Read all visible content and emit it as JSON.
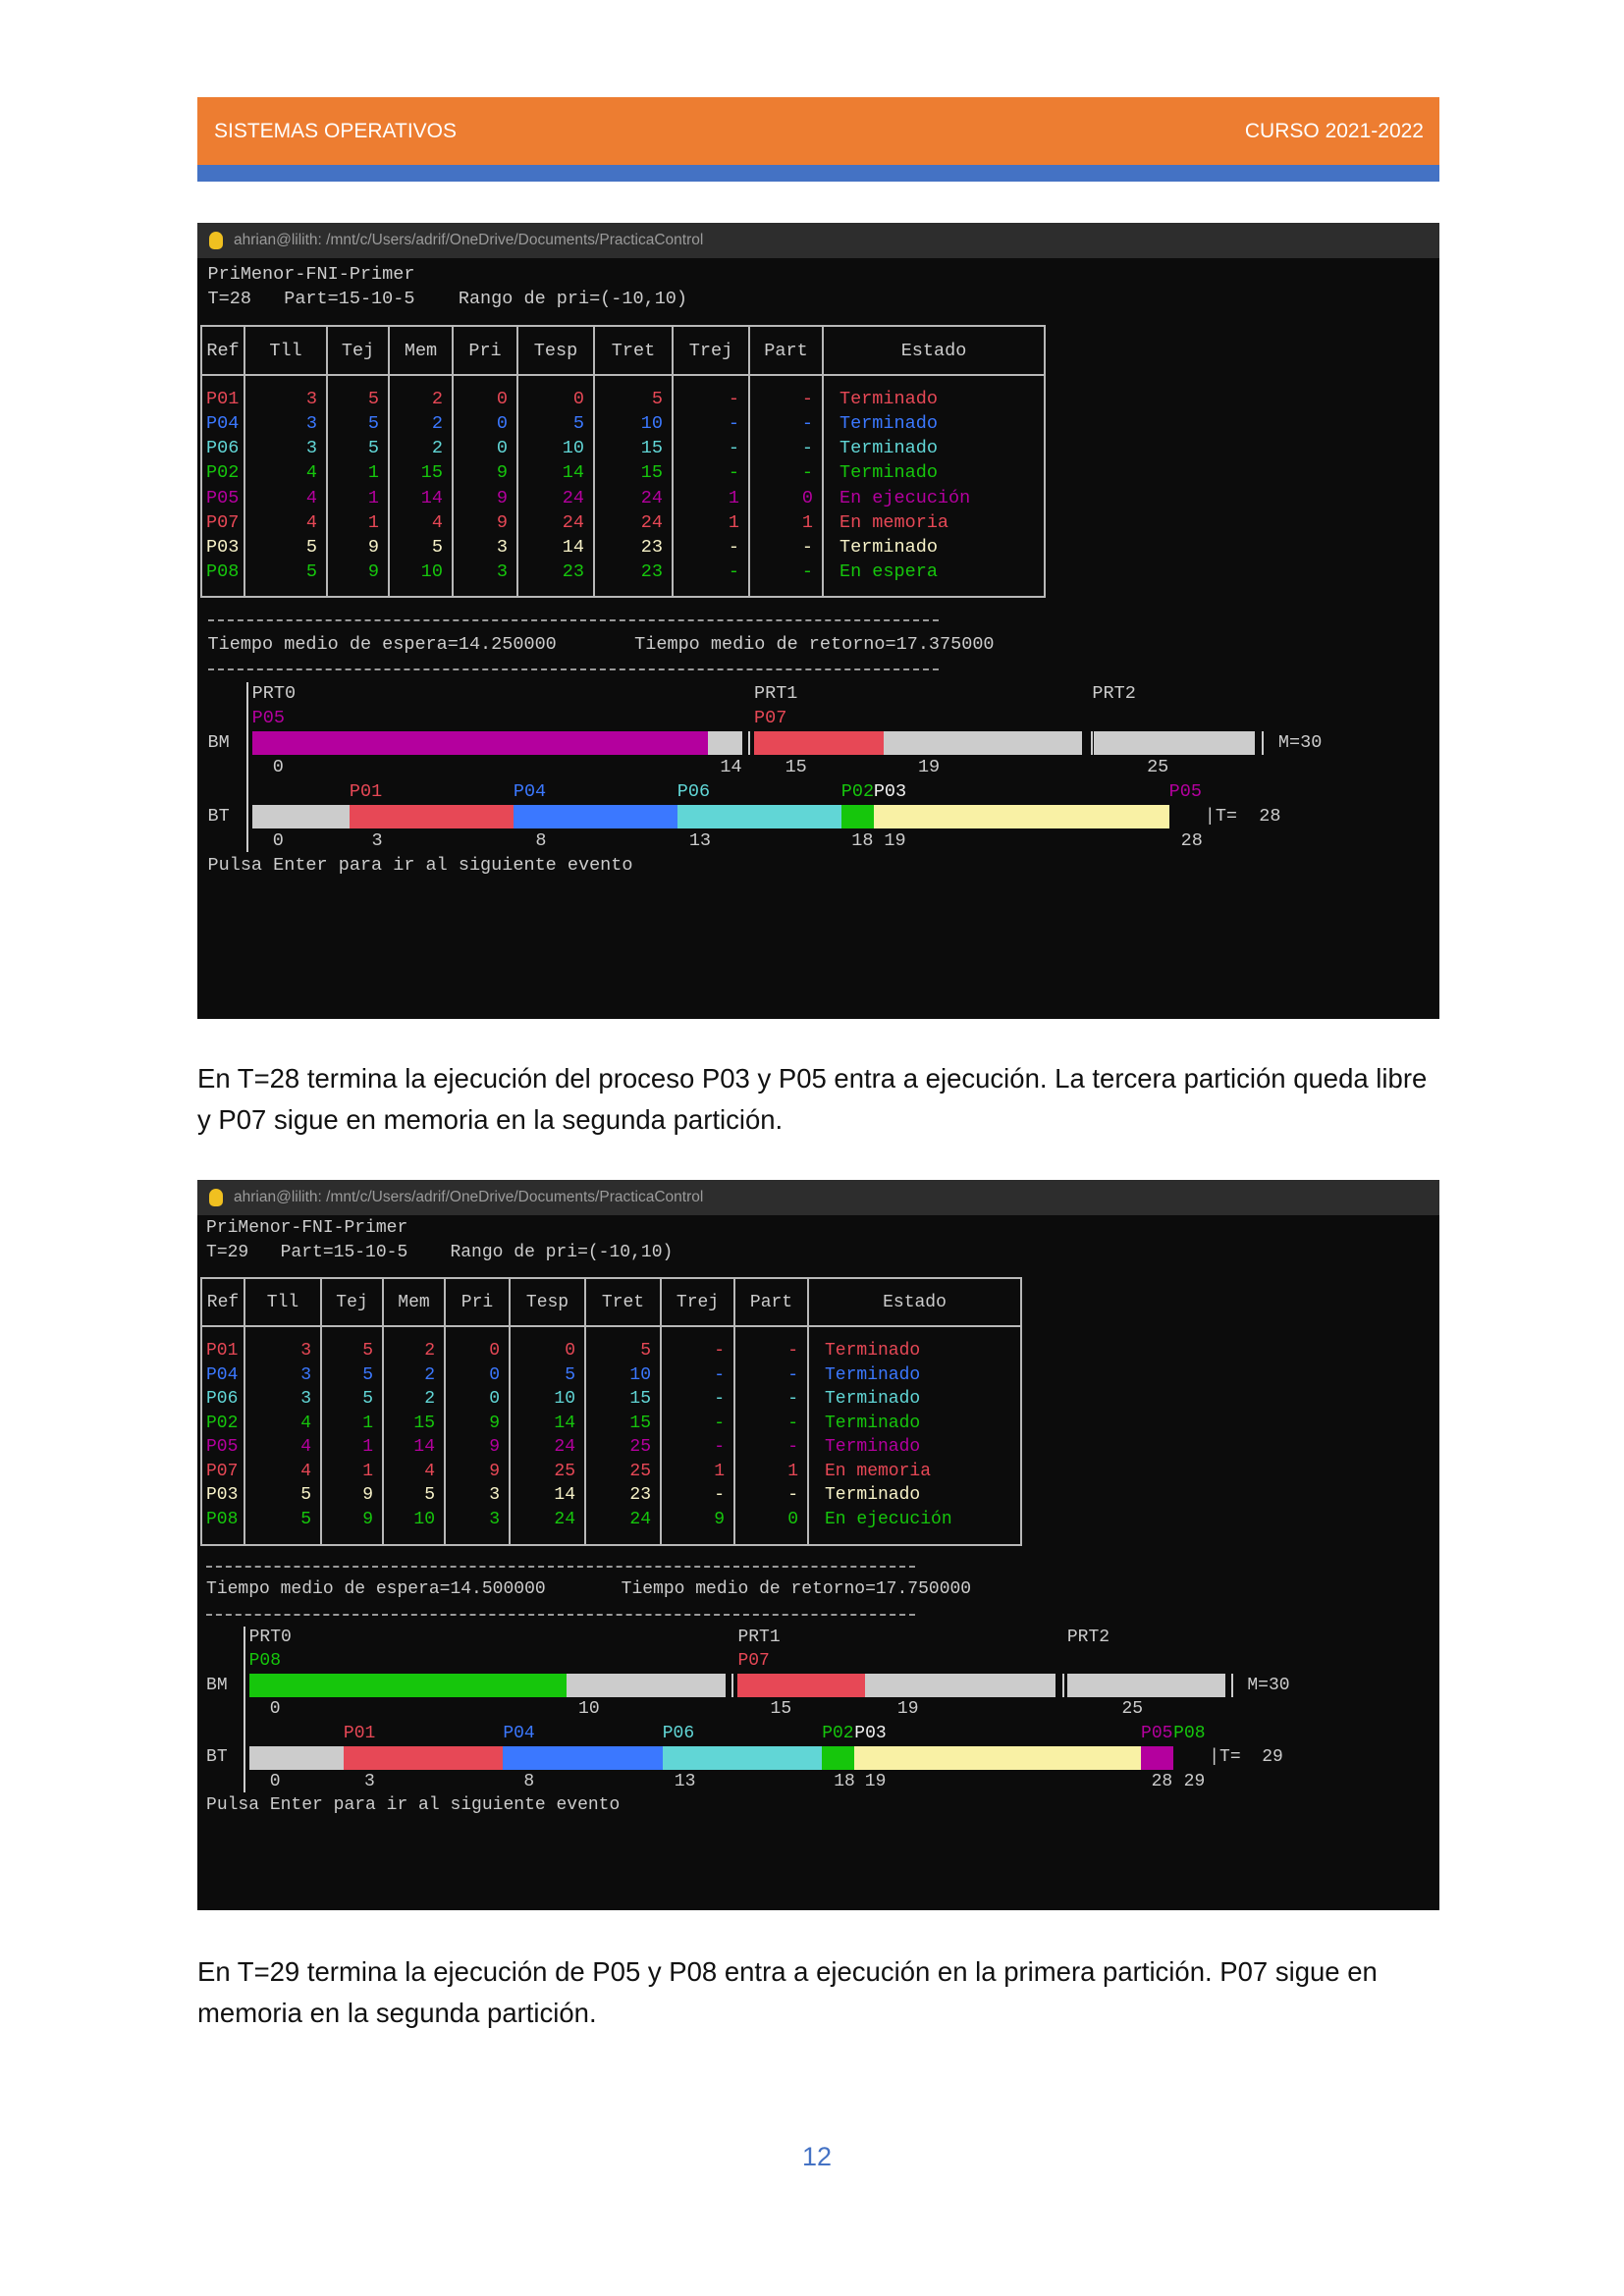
{
  "header": {
    "left": "SISTEMAS OPERATIVOS",
    "right": "CURSO 2021-2022"
  },
  "screens": [
    {
      "window_title": "ahrian@lilith: /mnt/c/Users/adrif/OneDrive/Documents/PracticaControl",
      "algorithm": "PriMenor-FNI-Primer",
      "status": "T=28   Part=15-10-5    Rango de pri=(-10,10)",
      "table": {
        "columns": [
          "Ref",
          "Tll",
          "Tej",
          "Mem",
          "Pri",
          "Tesp",
          "Tret",
          "Trej",
          "Part",
          "Estado"
        ],
        "rows": [
          [
            "P01",
            3,
            5,
            2,
            0,
            0,
            5,
            "-",
            "-",
            "Terminado"
          ],
          [
            "P04",
            3,
            5,
            2,
            0,
            5,
            10,
            "-",
            "-",
            "Terminado"
          ],
          [
            "P06",
            3,
            5,
            2,
            0,
            10,
            15,
            "-",
            "-",
            "Terminado"
          ],
          [
            "P02",
            4,
            1,
            15,
            9,
            14,
            15,
            "-",
            "-",
            "Terminado"
          ],
          [
            "P05",
            4,
            1,
            14,
            9,
            24,
            24,
            1,
            0,
            "En ejecución"
          ],
          [
            "P07",
            4,
            1,
            4,
            9,
            24,
            24,
            1,
            1,
            "En memoria"
          ],
          [
            "P03",
            5,
            9,
            5,
            3,
            14,
            23,
            "-",
            "-",
            "Terminado"
          ],
          [
            "P08",
            5,
            9,
            10,
            3,
            23,
            23,
            "-",
            "-",
            "En espera"
          ]
        ]
      },
      "avg_wait": "Tiempo medio de espera=14.250000",
      "avg_return": "Tiempo medio de retorno=17.375000",
      "memory": {
        "label": "BM",
        "partitions": [
          "PRT0",
          "PRT1",
          "PRT2"
        ],
        "processes": [
          "P05",
          "P07"
        ],
        "ticks": [
          0,
          14,
          15,
          19,
          25
        ],
        "end_label": "M=30"
      },
      "time": {
        "label": "BT",
        "processes": [
          "P01",
          "P04",
          "P06",
          "P02",
          "P03",
          "P05"
        ],
        "ticks": [
          0,
          3,
          8,
          13,
          18,
          19,
          28
        ],
        "end_label": "|T=  28"
      },
      "prompt": "Pulsa Enter para ir al siguiente evento",
      "caption": "En T=28 termina la ejecución del proceso P03 y P05 entra a ejecución. La tercera partición queda libre y P07 sigue en memoria en la segunda partición."
    },
    {
      "window_title": "ahrian@lilith: /mnt/c/Users/adrif/OneDrive/Documents/PracticaControl",
      "algorithm": "PriMenor-FNI-Primer",
      "status": "T=29   Part=15-10-5    Rango de pri=(-10,10)",
      "table": {
        "columns": [
          "Ref",
          "Tll",
          "Tej",
          "Mem",
          "Pri",
          "Tesp",
          "Tret",
          "Trej",
          "Part",
          "Estado"
        ],
        "rows": [
          [
            "P01",
            3,
            5,
            2,
            0,
            0,
            5,
            "-",
            "-",
            "Terminado"
          ],
          [
            "P04",
            3,
            5,
            2,
            0,
            5,
            10,
            "-",
            "-",
            "Terminado"
          ],
          [
            "P06",
            3,
            5,
            2,
            0,
            10,
            15,
            "-",
            "-",
            "Terminado"
          ],
          [
            "P02",
            4,
            1,
            15,
            9,
            14,
            15,
            "-",
            "-",
            "Terminado"
          ],
          [
            "P05",
            4,
            1,
            14,
            9,
            24,
            25,
            "-",
            "-",
            "Terminado"
          ],
          [
            "P07",
            4,
            1,
            4,
            9,
            25,
            25,
            1,
            1,
            "En memoria"
          ],
          [
            "P03",
            5,
            9,
            5,
            3,
            14,
            23,
            "-",
            "-",
            "Terminado"
          ],
          [
            "P08",
            5,
            9,
            10,
            3,
            24,
            24,
            9,
            0,
            "En ejecución"
          ]
        ]
      },
      "avg_wait": "Tiempo medio de espera=14.500000",
      "avg_return": "Tiempo medio de retorno=17.750000",
      "memory": {
        "label": "BM",
        "partitions": [
          "PRT0",
          "PRT1",
          "PRT2"
        ],
        "processes": [
          "P08",
          "P07"
        ],
        "ticks": [
          0,
          10,
          15,
          19,
          25
        ],
        "end_label": "M=30"
      },
      "time": {
        "label": "BT",
        "processes": [
          "P01",
          "P04",
          "P06",
          "P02",
          "P03",
          "P05",
          "P08"
        ],
        "ticks": [
          0,
          3,
          8,
          13,
          18,
          19,
          28,
          29
        ],
        "end_label": "|T=  29"
      },
      "prompt": "Pulsa Enter para ir al siguiente evento",
      "caption": "En T=29 termina la ejecución de P05 y P08 entra a ejecución en la primera partición. P07 sigue en memoria en la segunda partición."
    }
  ],
  "page_number": 12
}
